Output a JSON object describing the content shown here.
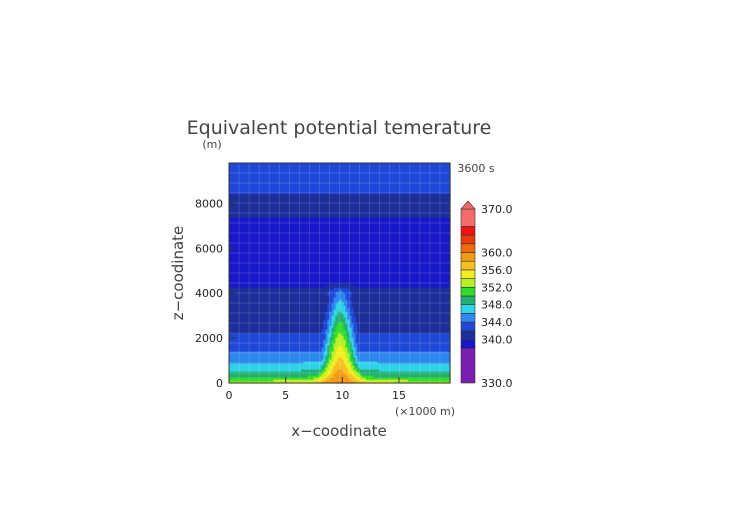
{
  "chart_data": {
    "type": "heatmap",
    "title": "Equivalent potential temerature",
    "xlabel": "x−coodinate",
    "ylabel": "z−coodinate",
    "x_unit": "(×1000 m)",
    "y_unit": "(m)",
    "time_label": "3600 s",
    "xlim": [
      0,
      19.5
    ],
    "ylim": [
      0,
      9800
    ],
    "x_ticks": [
      0,
      5,
      10,
      15
    ],
    "y_ticks": [
      0,
      2000,
      4000,
      6000,
      8000
    ],
    "grid": true,
    "legend": "colorbar right",
    "colorbar": {
      "levels": [
        330,
        338,
        340,
        342,
        344,
        346,
        348,
        350,
        352,
        354,
        356,
        358,
        360,
        362,
        364,
        366,
        370
      ],
      "colors": [
        "#7a1fb0",
        "#1818c8",
        "#1c2f9a",
        "#1f48d8",
        "#2e86ee",
        "#2ed4e6",
        "#23b070",
        "#33dd2a",
        "#b8ef24",
        "#f2ef20",
        "#f7c020",
        "#f49a14",
        "#f06a10",
        "#e83a10",
        "#f21212",
        "#f56a6a"
      ],
      "labels": [
        "330.0",
        "340.0",
        "344.0",
        "348.0",
        "352.0",
        "356.0",
        "360.0",
        "370.0"
      ],
      "label_values": [
        330,
        340,
        344,
        348,
        352,
        356,
        360,
        370
      ]
    },
    "field_description": {
      "background_profile": [
        {
          "z": 0,
          "theta_e": 354
        },
        {
          "z": 300,
          "theta_e": 349
        },
        {
          "z": 700,
          "theta_e": 347
        },
        {
          "z": 1100,
          "theta_e": 345
        },
        {
          "z": 1600,
          "theta_e": 343.5
        },
        {
          "z": 2100,
          "theta_e": 342.5
        },
        {
          "z": 2500,
          "theta_e": 341
        },
        {
          "z": 2700,
          "theta_e": 339
        },
        {
          "z": 7200,
          "theta_e": 339
        },
        {
          "z": 7500,
          "theta_e": 340.5
        },
        {
          "z": 8300,
          "theta_e": 341
        },
        {
          "z": 8600,
          "theta_e": 342.5
        },
        {
          "z": 9800,
          "theta_e": 343
        }
      ],
      "plume": {
        "center_x": 9.8,
        "top_z": 4300,
        "core_max_theta_e": 357
      }
    }
  }
}
